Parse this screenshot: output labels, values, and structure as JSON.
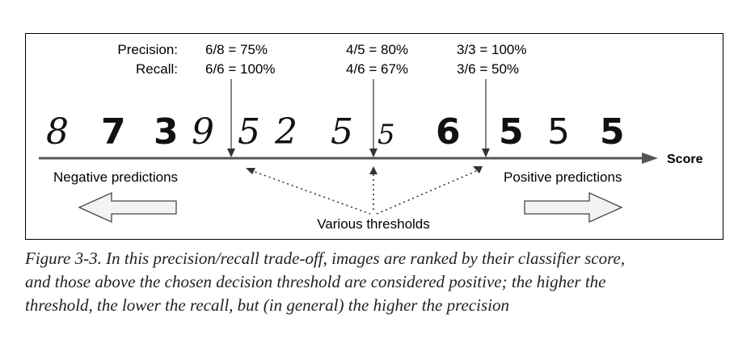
{
  "metrics": {
    "precision_label": "Precision:",
    "recall_label": "Recall:",
    "thresholds": [
      {
        "precision": "6/8 = 75%",
        "recall": "6/6 = 100%"
      },
      {
        "precision": "4/5 = 80%",
        "recall": "4/6 = 67%"
      },
      {
        "precision": "3/3 = 100%",
        "recall": "3/6 = 50%"
      }
    ]
  },
  "digits": [
    "8",
    "7",
    "3",
    "9",
    "5",
    "2",
    "5",
    "5",
    "6",
    "5",
    "5",
    "5"
  ],
  "axis_label": "Score",
  "negative_label": "Negative predictions",
  "positive_label": "Positive predictions",
  "thresholds_label": "Various thresholds",
  "caption": {
    "line1": "Figure 3-3. In this precision/recall trade-off, images are ranked by their classifier score,",
    "line2": "and those above the chosen decision threshold are considered positive; the higher the",
    "line3": "threshold, the lower the recall, but (in general) the higher the precision"
  }
}
